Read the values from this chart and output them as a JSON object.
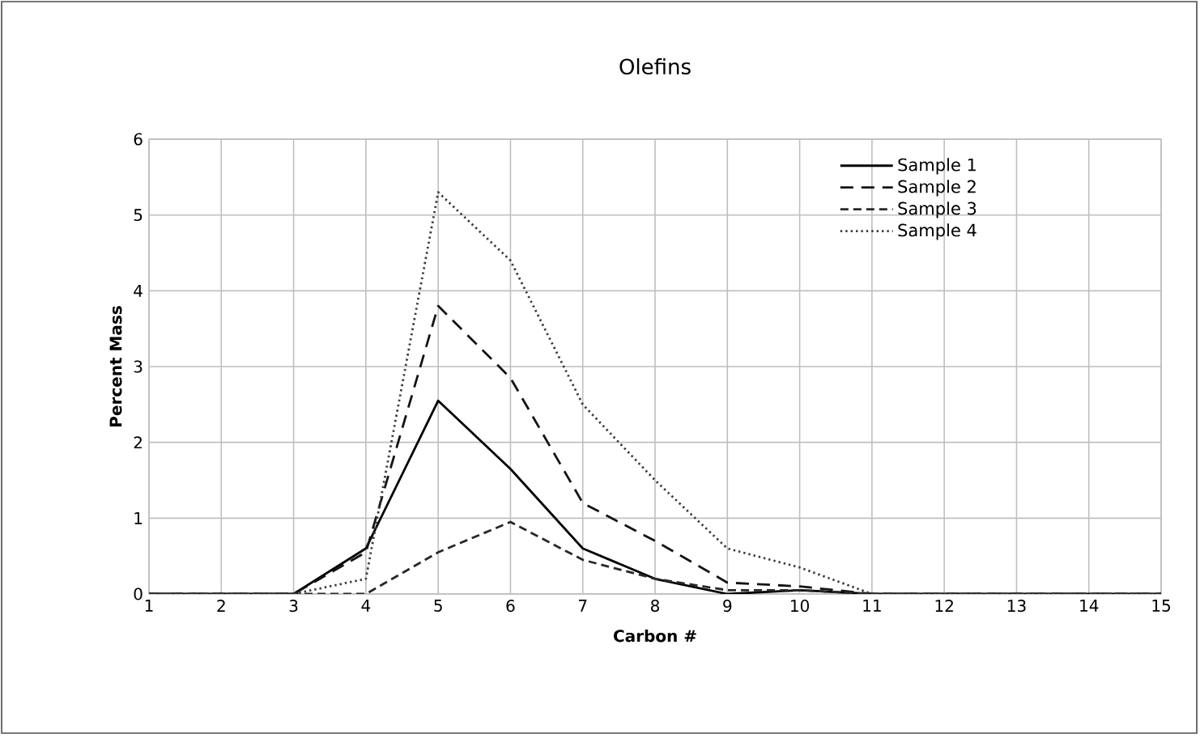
{
  "chart_data": {
    "type": "line",
    "title": "Olefins",
    "xlabel": "Carbon #",
    "ylabel": "Percent Mass",
    "x": [
      1,
      2,
      3,
      4,
      5,
      6,
      7,
      8,
      9,
      10,
      11,
      12,
      13,
      14,
      15
    ],
    "series": [
      {
        "name": "Sample 1",
        "color": "#000000",
        "line_style": "solid",
        "values": [
          0,
          0,
          0,
          0.6,
          2.55,
          1.65,
          0.6,
          0.2,
          0,
          0.05,
          0,
          0,
          0,
          0,
          0
        ]
      },
      {
        "name": "Sample 2",
        "color": "#141414",
        "line_style": "dashed",
        "values": [
          0,
          0,
          0,
          0.55,
          3.8,
          2.85,
          1.2,
          0.7,
          0.15,
          0.1,
          0,
          0,
          0,
          0,
          0
        ]
      },
      {
        "name": "Sample 3",
        "color": "#282828",
        "line_style": "dashed",
        "values": [
          0,
          0,
          0,
          0,
          0.55,
          0.95,
          0.45,
          0.2,
          0.05,
          0.05,
          0,
          0,
          0,
          0,
          0
        ]
      },
      {
        "name": "Sample 4",
        "color": "#3c3c3c",
        "line_style": "dotted",
        "values": [
          0,
          0,
          0,
          0.2,
          5.3,
          4.4,
          2.5,
          1.5,
          0.6,
          0.35,
          0,
          0,
          0,
          0,
          0
        ]
      }
    ],
    "xlim": [
      1,
      15
    ],
    "xticks": [
      1,
      2,
      3,
      4,
      5,
      6,
      7,
      8,
      9,
      10,
      11,
      12,
      13,
      14,
      15
    ],
    "ylim": [
      0,
      6
    ],
    "yticks": [
      0,
      1,
      2,
      3,
      4,
      5,
      6
    ],
    "grid": true,
    "legend": "top right",
    "marker": "none"
  }
}
